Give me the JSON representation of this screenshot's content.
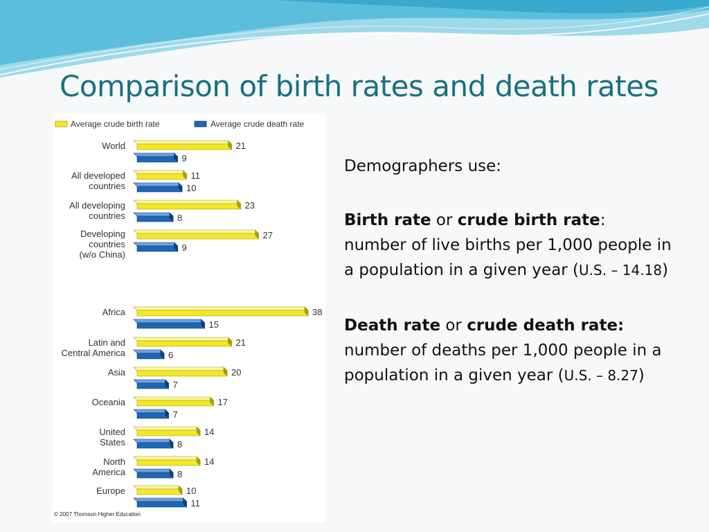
{
  "slide": {
    "title": "Comparison of birth rates and death rates",
    "intro": "Demographers use:",
    "birth": {
      "term1": "Birth rate",
      "or_word": " or ",
      "term2": "crude birth rate",
      "colon": ":",
      "definition": "number of live births per 1,000 people in a population in a given year (",
      "us_label": "U.S. – 14.18",
      "close": ")"
    },
    "death": {
      "term1": "Death rate",
      "or_word": " or ",
      "term2": "crude death rate:",
      "definition": "number of deaths per 1,000 people in a population in a given year (",
      "us_label": "U.S. – 8.27",
      "close": ")"
    },
    "copyright": "© 2007 Thomson Higher Education"
  },
  "colors": {
    "title": "#17707f",
    "birth_bar": "#f2e825",
    "death_bar": "#1f67b4",
    "background": "#f6f8f9"
  },
  "chart_data": {
    "type": "bar",
    "orientation": "horizontal",
    "legend_position": "top",
    "categories": [
      "World",
      "All developed countries",
      "All developing countries",
      "Developing countries (w/o China)",
      "Africa",
      "Latin and Central America",
      "Asia",
      "Oceania",
      "United States",
      "North America",
      "Europe"
    ],
    "category_lines": [
      [
        "World"
      ],
      [
        "All developed",
        "countries"
      ],
      [
        "All developing",
        "countries"
      ],
      [
        "Developing",
        "countries",
        "(w/o China)"
      ],
      [
        "Africa"
      ],
      [
        "Latin and",
        "Central America"
      ],
      [
        "Asia"
      ],
      [
        "Oceania"
      ],
      [
        "United",
        "States"
      ],
      [
        "North",
        "America"
      ],
      [
        "Europe"
      ]
    ],
    "series": [
      {
        "name": "Average crude birth rate",
        "values": [
          21,
          11,
          23,
          27,
          38,
          21,
          20,
          17,
          14,
          14,
          10
        ]
      },
      {
        "name": "Average crude death rate",
        "values": [
          9,
          10,
          8,
          9,
          15,
          6,
          7,
          7,
          8,
          8,
          11
        ]
      }
    ],
    "grid": false
  }
}
